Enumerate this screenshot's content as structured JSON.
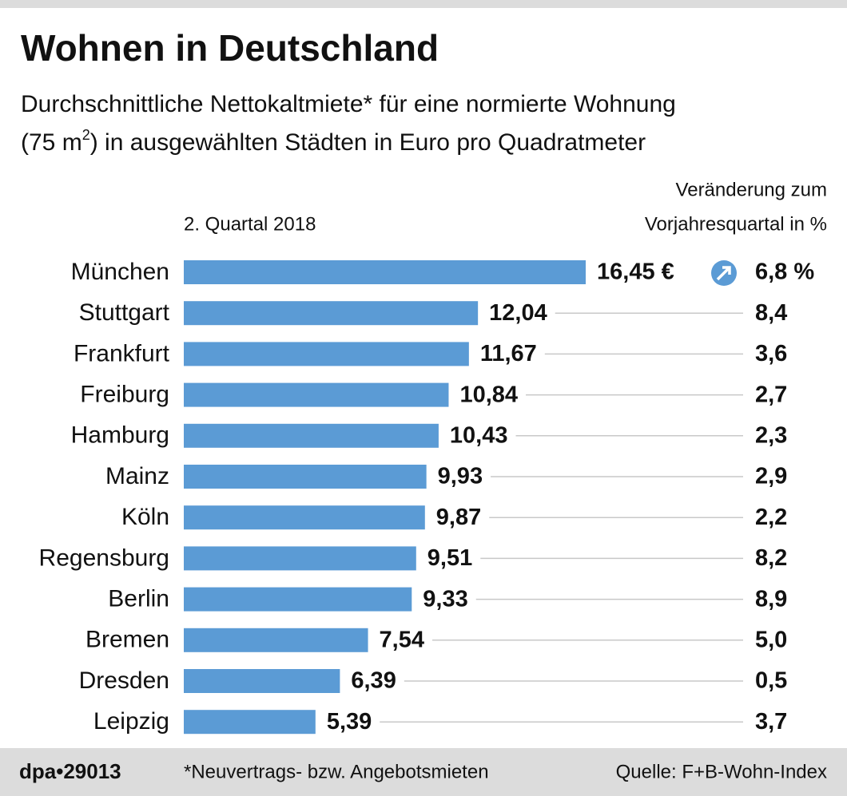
{
  "chart_data": {
    "type": "bar",
    "title": "Wohnen in Deutschland",
    "subtitle": [
      "Durchschnittliche Nettokaltmiete* für eine normierte Wohnung",
      "(75 m",
      "2",
      ") in ausgewählten Städten in Euro pro Quadratmeter"
    ],
    "categories": [
      "München",
      "Stuttgart",
      "Frankfurt",
      "Freiburg",
      "Hamburg",
      "Mainz",
      "Köln",
      "Regensburg",
      "Berlin",
      "Bremen",
      "Dresden",
      "Leipzig"
    ],
    "series": [
      {
        "name": "2. Quartal 2018",
        "color": "#5b9bd5",
        "values": [
          16.45,
          12.04,
          11.67,
          10.84,
          10.43,
          9.93,
          9.87,
          9.51,
          9.33,
          7.54,
          6.39,
          5.39
        ],
        "value_labels": [
          "16,45 €",
          "12,04",
          "11,67",
          "10,84",
          "10,43",
          "9,93",
          "9,87",
          "9,51",
          "9,33",
          "7,54",
          "6,39",
          "5,39"
        ]
      }
    ],
    "change": {
      "header": [
        "Veränderung zum",
        "Vorjahresquartal in %"
      ],
      "values": [
        6.8,
        8.4,
        3.6,
        2.7,
        2.3,
        2.9,
        2.2,
        8.2,
        8.9,
        5.0,
        0.5,
        3.7
      ],
      "value_labels": [
        "6,8 %",
        "8,4",
        "3,6",
        "2,7",
        "2,3",
        "2,9",
        "2,2",
        "8,2",
        "8,9",
        "5,0",
        "0,5",
        "3,7"
      ]
    },
    "footer": {
      "agency": "dpa•29013",
      "note": "*Neuvertrags- bzw. Angebotsmieten",
      "source": "Quelle: F+B-Wohn-Index"
    }
  }
}
